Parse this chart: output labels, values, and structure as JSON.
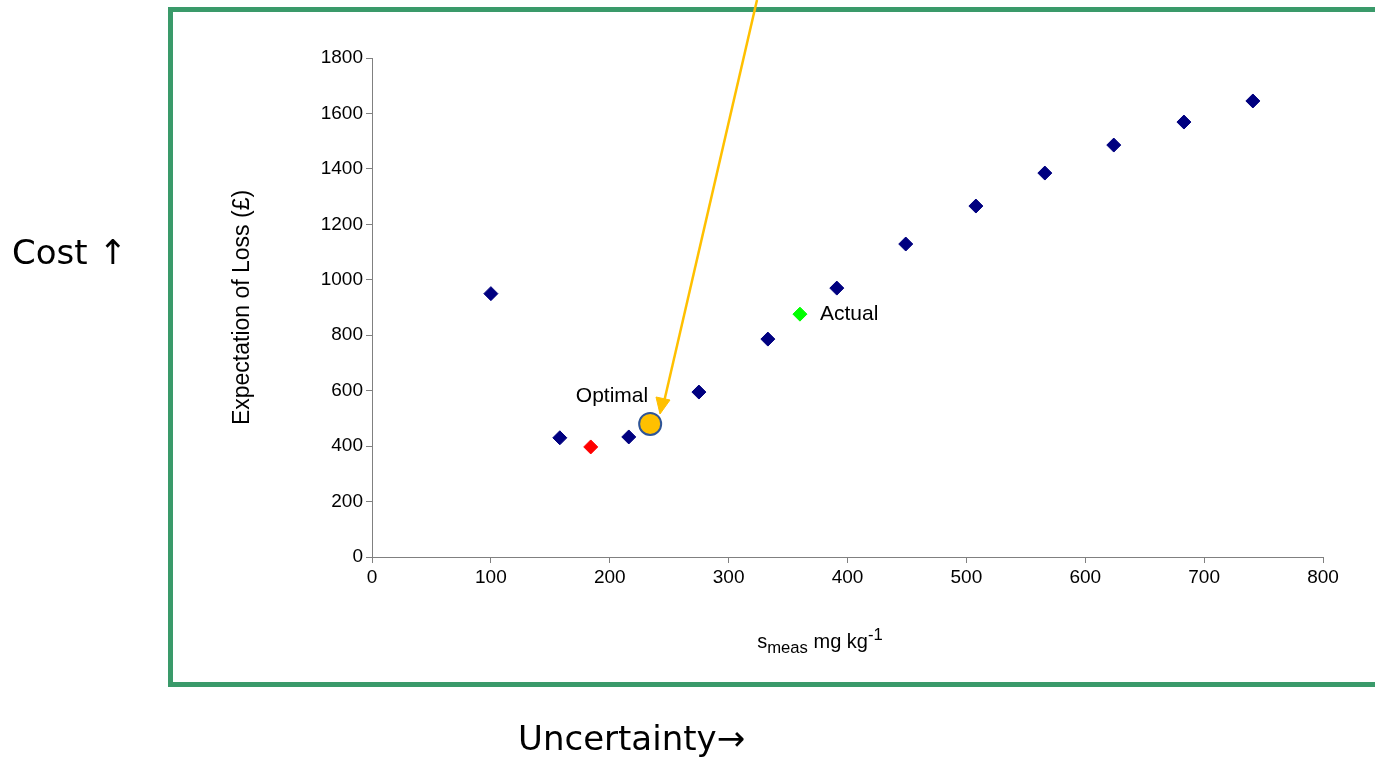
{
  "chart_data": {
    "type": "scatter",
    "xlabel": "s$_{meas}$ mg kg$^{-1}$",
    "ylabel": "Expectation of Loss (£)",
    "annotations": [
      "Cost ↑",
      "Uncertainty→"
    ],
    "xlim": [
      0,
      800
    ],
    "xticks": [
      0,
      100,
      200,
      300,
      400,
      500,
      600,
      700,
      800
    ],
    "ylim": [
      0,
      1800
    ],
    "yticks": [
      0,
      200,
      400,
      600,
      800,
      1000,
      1200,
      1400,
      1600,
      1800
    ],
    "grid": false,
    "series": [
      {
        "color": "#000080",
        "marker": "diamond",
        "x": [
          100,
          158,
          216,
          275,
          333,
          391,
          449,
          508,
          566,
          624,
          683,
          741
        ],
        "values": [
          950,
          430,
          433,
          595,
          786,
          970,
          1129,
          1266,
          1385,
          1486,
          1569,
          1645
        ]
      },
      {
        "color": "#ff0000",
        "marker": "diamond",
        "x": [
          184
        ],
        "values": [
          397
        ]
      },
      {
        "name": "Actual",
        "color": "#00ff00",
        "marker": "diamond",
        "x": [
          360
        ],
        "values": [
          876
        ]
      },
      {
        "name": "Optimal",
        "color": "#ffc000",
        "marker": "circle",
        "x": [
          234
        ],
        "values": [
          480
        ]
      }
    ]
  }
}
